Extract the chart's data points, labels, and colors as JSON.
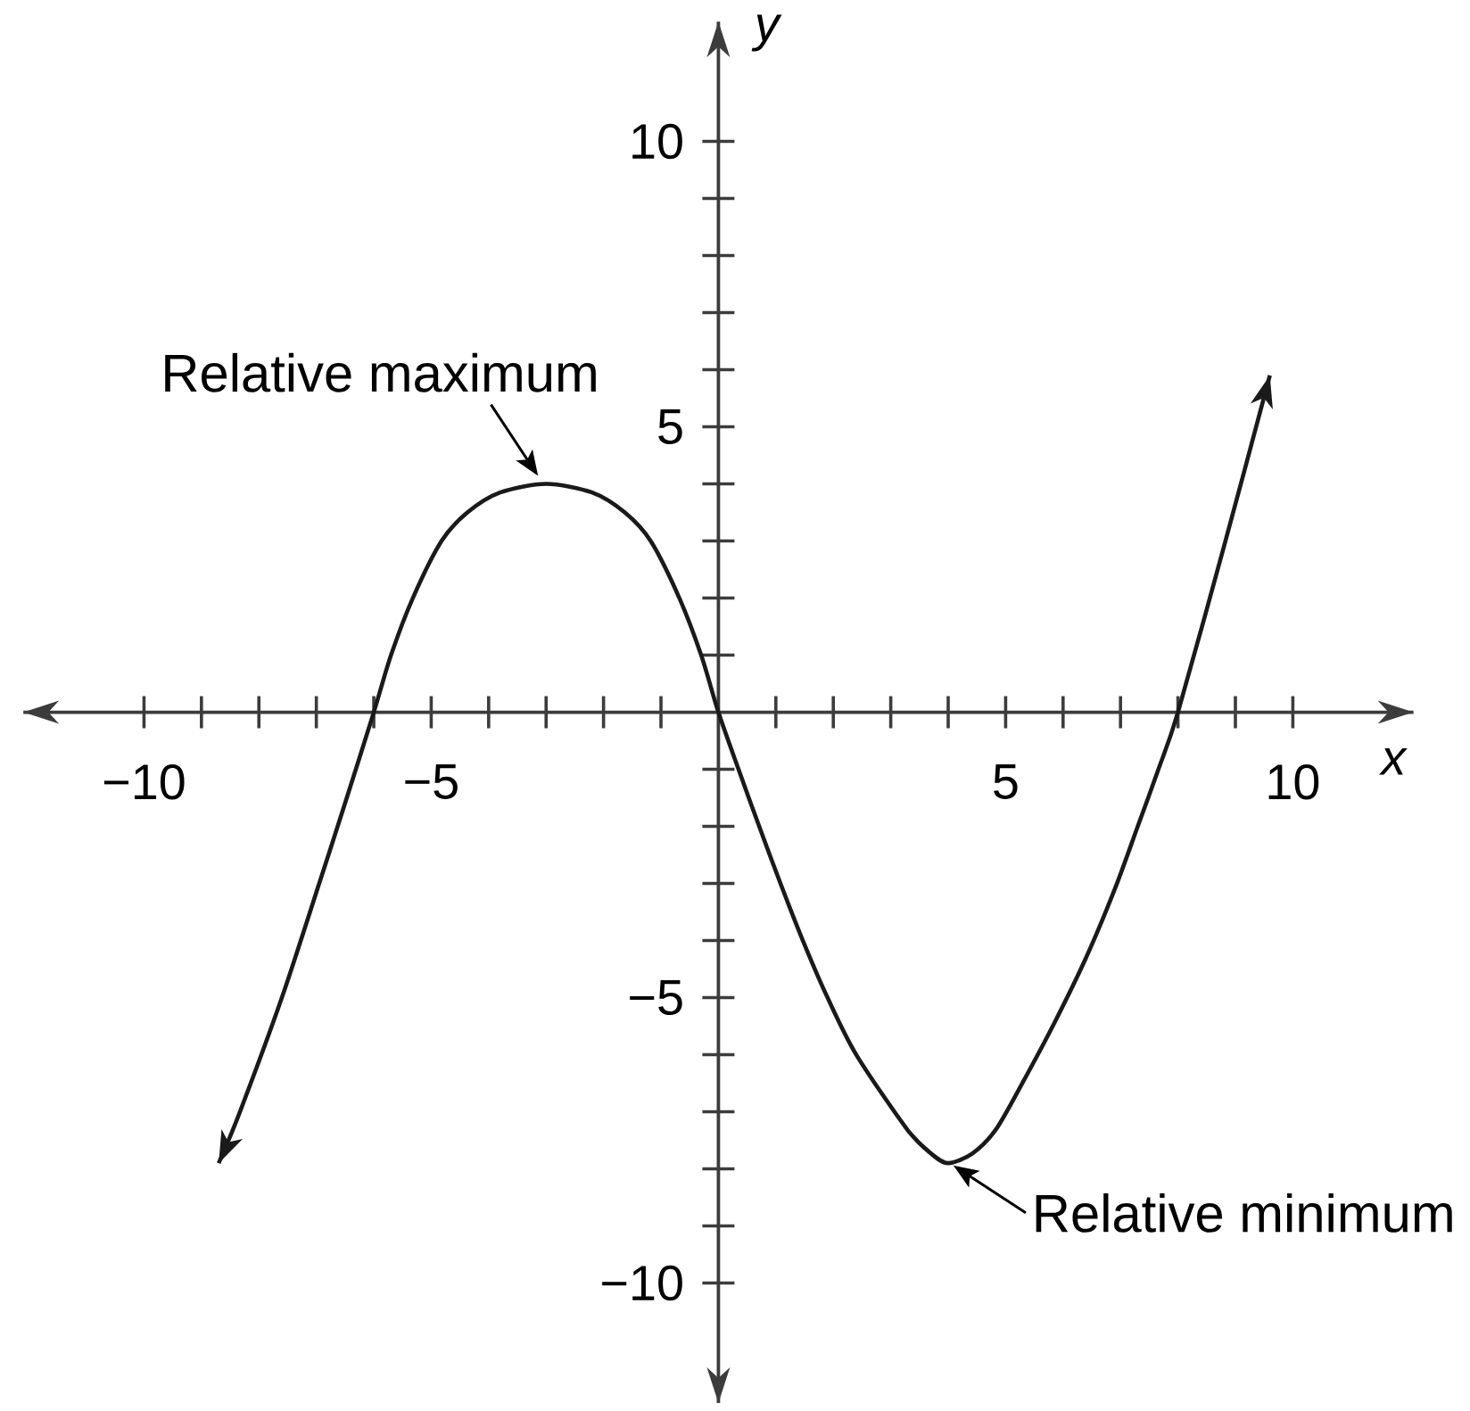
{
  "chart_data": {
    "type": "line",
    "xlabel": "x",
    "ylabel": "y",
    "annotations": [
      {
        "text": "Relative maximum",
        "x": -3,
        "y": 4
      },
      {
        "text": "Relative minimum",
        "x": 4,
        "y": -7.9
      }
    ],
    "xlim": [
      -12.1,
      12.1
    ],
    "ylim": [
      -12.1,
      12.1
    ],
    "xticks": [
      {
        "value": -10,
        "label": "−10"
      },
      {
        "value": -9,
        "label": null
      },
      {
        "value": -8,
        "label": null
      },
      {
        "value": -7,
        "label": null
      },
      {
        "value": -6,
        "label": null
      },
      {
        "value": -5,
        "label": "−5"
      },
      {
        "value": -4,
        "label": null
      },
      {
        "value": -3,
        "label": null
      },
      {
        "value": -2,
        "label": null
      },
      {
        "value": -1,
        "label": null
      },
      {
        "value": 1,
        "label": null
      },
      {
        "value": 2,
        "label": null
      },
      {
        "value": 3,
        "label": null
      },
      {
        "value": 4,
        "label": null
      },
      5,
      {
        "value": 6,
        "label": null
      },
      {
        "value": 7,
        "label": null
      },
      {
        "value": 8,
        "label": null
      },
      {
        "value": 9,
        "label": null
      },
      10
    ],
    "yticks": [
      {
        "value": -10,
        "label": "−10"
      },
      {
        "value": -9,
        "label": null
      },
      {
        "value": -8,
        "label": null
      },
      {
        "value": -7,
        "label": null
      },
      {
        "value": -6,
        "label": null
      },
      {
        "value": -5,
        "label": "−5"
      },
      {
        "value": -4,
        "label": null
      },
      {
        "value": -3,
        "label": null
      },
      {
        "value": -2,
        "label": null
      },
      {
        "value": -1,
        "label": null
      },
      {
        "value": 1,
        "label": null
      },
      {
        "value": 2,
        "label": null
      },
      {
        "value": 3,
        "label": null
      },
      {
        "value": 4,
        "label": null
      },
      5,
      {
        "value": 6,
        "label": null
      },
      {
        "value": 7,
        "label": null
      },
      {
        "value": 8,
        "label": null
      },
      {
        "value": 9,
        "label": null
      },
      10
    ],
    "color": "#1a1a1a",
    "x": [
      -8.7,
      -8.33,
      -7.6,
      -6.95,
      -6.47,
      -6,
      -5.7,
      -5.32,
      -4.82,
      -4.37,
      -3.8,
      -3,
      -2.2,
      -1.63,
      -1.18,
      -0.68,
      -0.3,
      0,
      0.35,
      0.71,
      1.08,
      1.47,
      1.9,
      2.4,
      3.28,
      3.7,
      4,
      4.42,
      4.83,
      5.3,
      5.85,
      6.4,
      6.9,
      7.3,
      7.66,
      8,
      8.8,
      9.6
    ],
    "values": [
      -7.9,
      -7,
      -5,
      -3,
      -1.5,
      0,
      1,
      2,
      3,
      3.5,
      3.85,
      4,
      3.85,
      3.5,
      3,
      2,
      1,
      0,
      -1,
      -2,
      -3,
      -4,
      -5,
      -6,
      -7.3,
      -7.73,
      -7.9,
      -7.73,
      -7.31,
      -6.48,
      -5.44,
      -4.3,
      -3.1,
      -2,
      -1,
      0,
      2.9,
      5.9
    ]
  }
}
